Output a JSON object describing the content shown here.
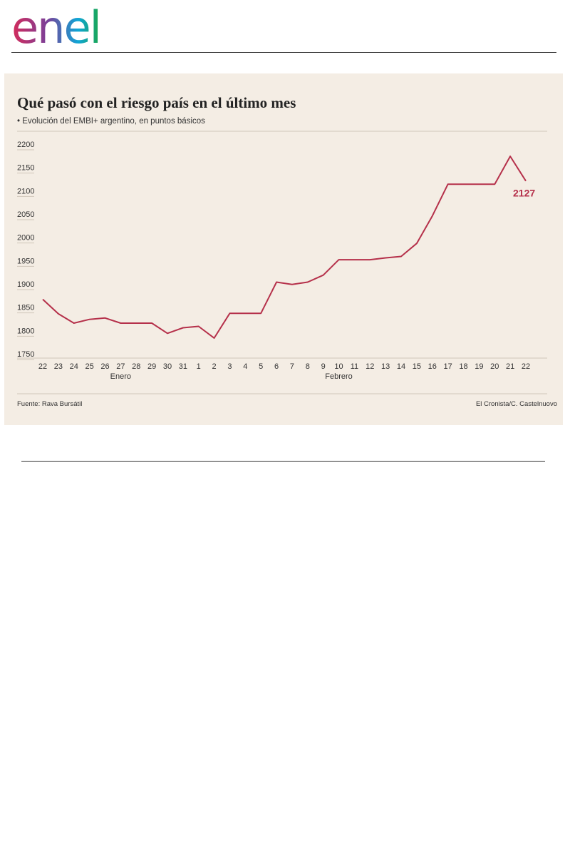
{
  "brand": {
    "logo_text": "enel",
    "logo_colors": [
      "#d52b5a",
      "#7b3f98",
      "#0fa6d6",
      "#1aa64a"
    ]
  },
  "chart_data": {
    "type": "line",
    "title": "Qué pasó con el riesgo país en el último mes",
    "subtitle": "• Evolución del EMBI+ argentino, en puntos básicos",
    "x": [
      "22",
      "23",
      "24",
      "25",
      "26",
      "27",
      "28",
      "29",
      "30",
      "31",
      "1",
      "2",
      "3",
      "4",
      "5",
      "6",
      "7",
      "8",
      "9",
      "10",
      "11",
      "12",
      "13",
      "14",
      "15",
      "16",
      "17",
      "18",
      "19",
      "20",
      "21",
      "22"
    ],
    "values": [
      1873,
      1842,
      1822,
      1830,
      1833,
      1822,
      1822,
      1822,
      1800,
      1812,
      1815,
      1790,
      1843,
      1843,
      1843,
      1910,
      1905,
      1910,
      1925,
      1958,
      1958,
      1958,
      1962,
      1965,
      1993,
      2052,
      2120,
      2120,
      2120,
      2120,
      2180,
      2127
    ],
    "month_labels": [
      {
        "label": "Enero",
        "at_index": 5
      },
      {
        "label": "Febrero",
        "at_index": 19
      }
    ],
    "y_ticks": [
      1750,
      1800,
      1850,
      1900,
      1950,
      2000,
      2050,
      2100,
      2150,
      2200
    ],
    "ylim": [
      1750,
      2200
    ],
    "last_value_label": "2127",
    "line_color": "#b5304a",
    "source": "Fuente: Rava Bursátil",
    "credit": "El Cronista/C. Castelnuovo",
    "grid": false
  }
}
